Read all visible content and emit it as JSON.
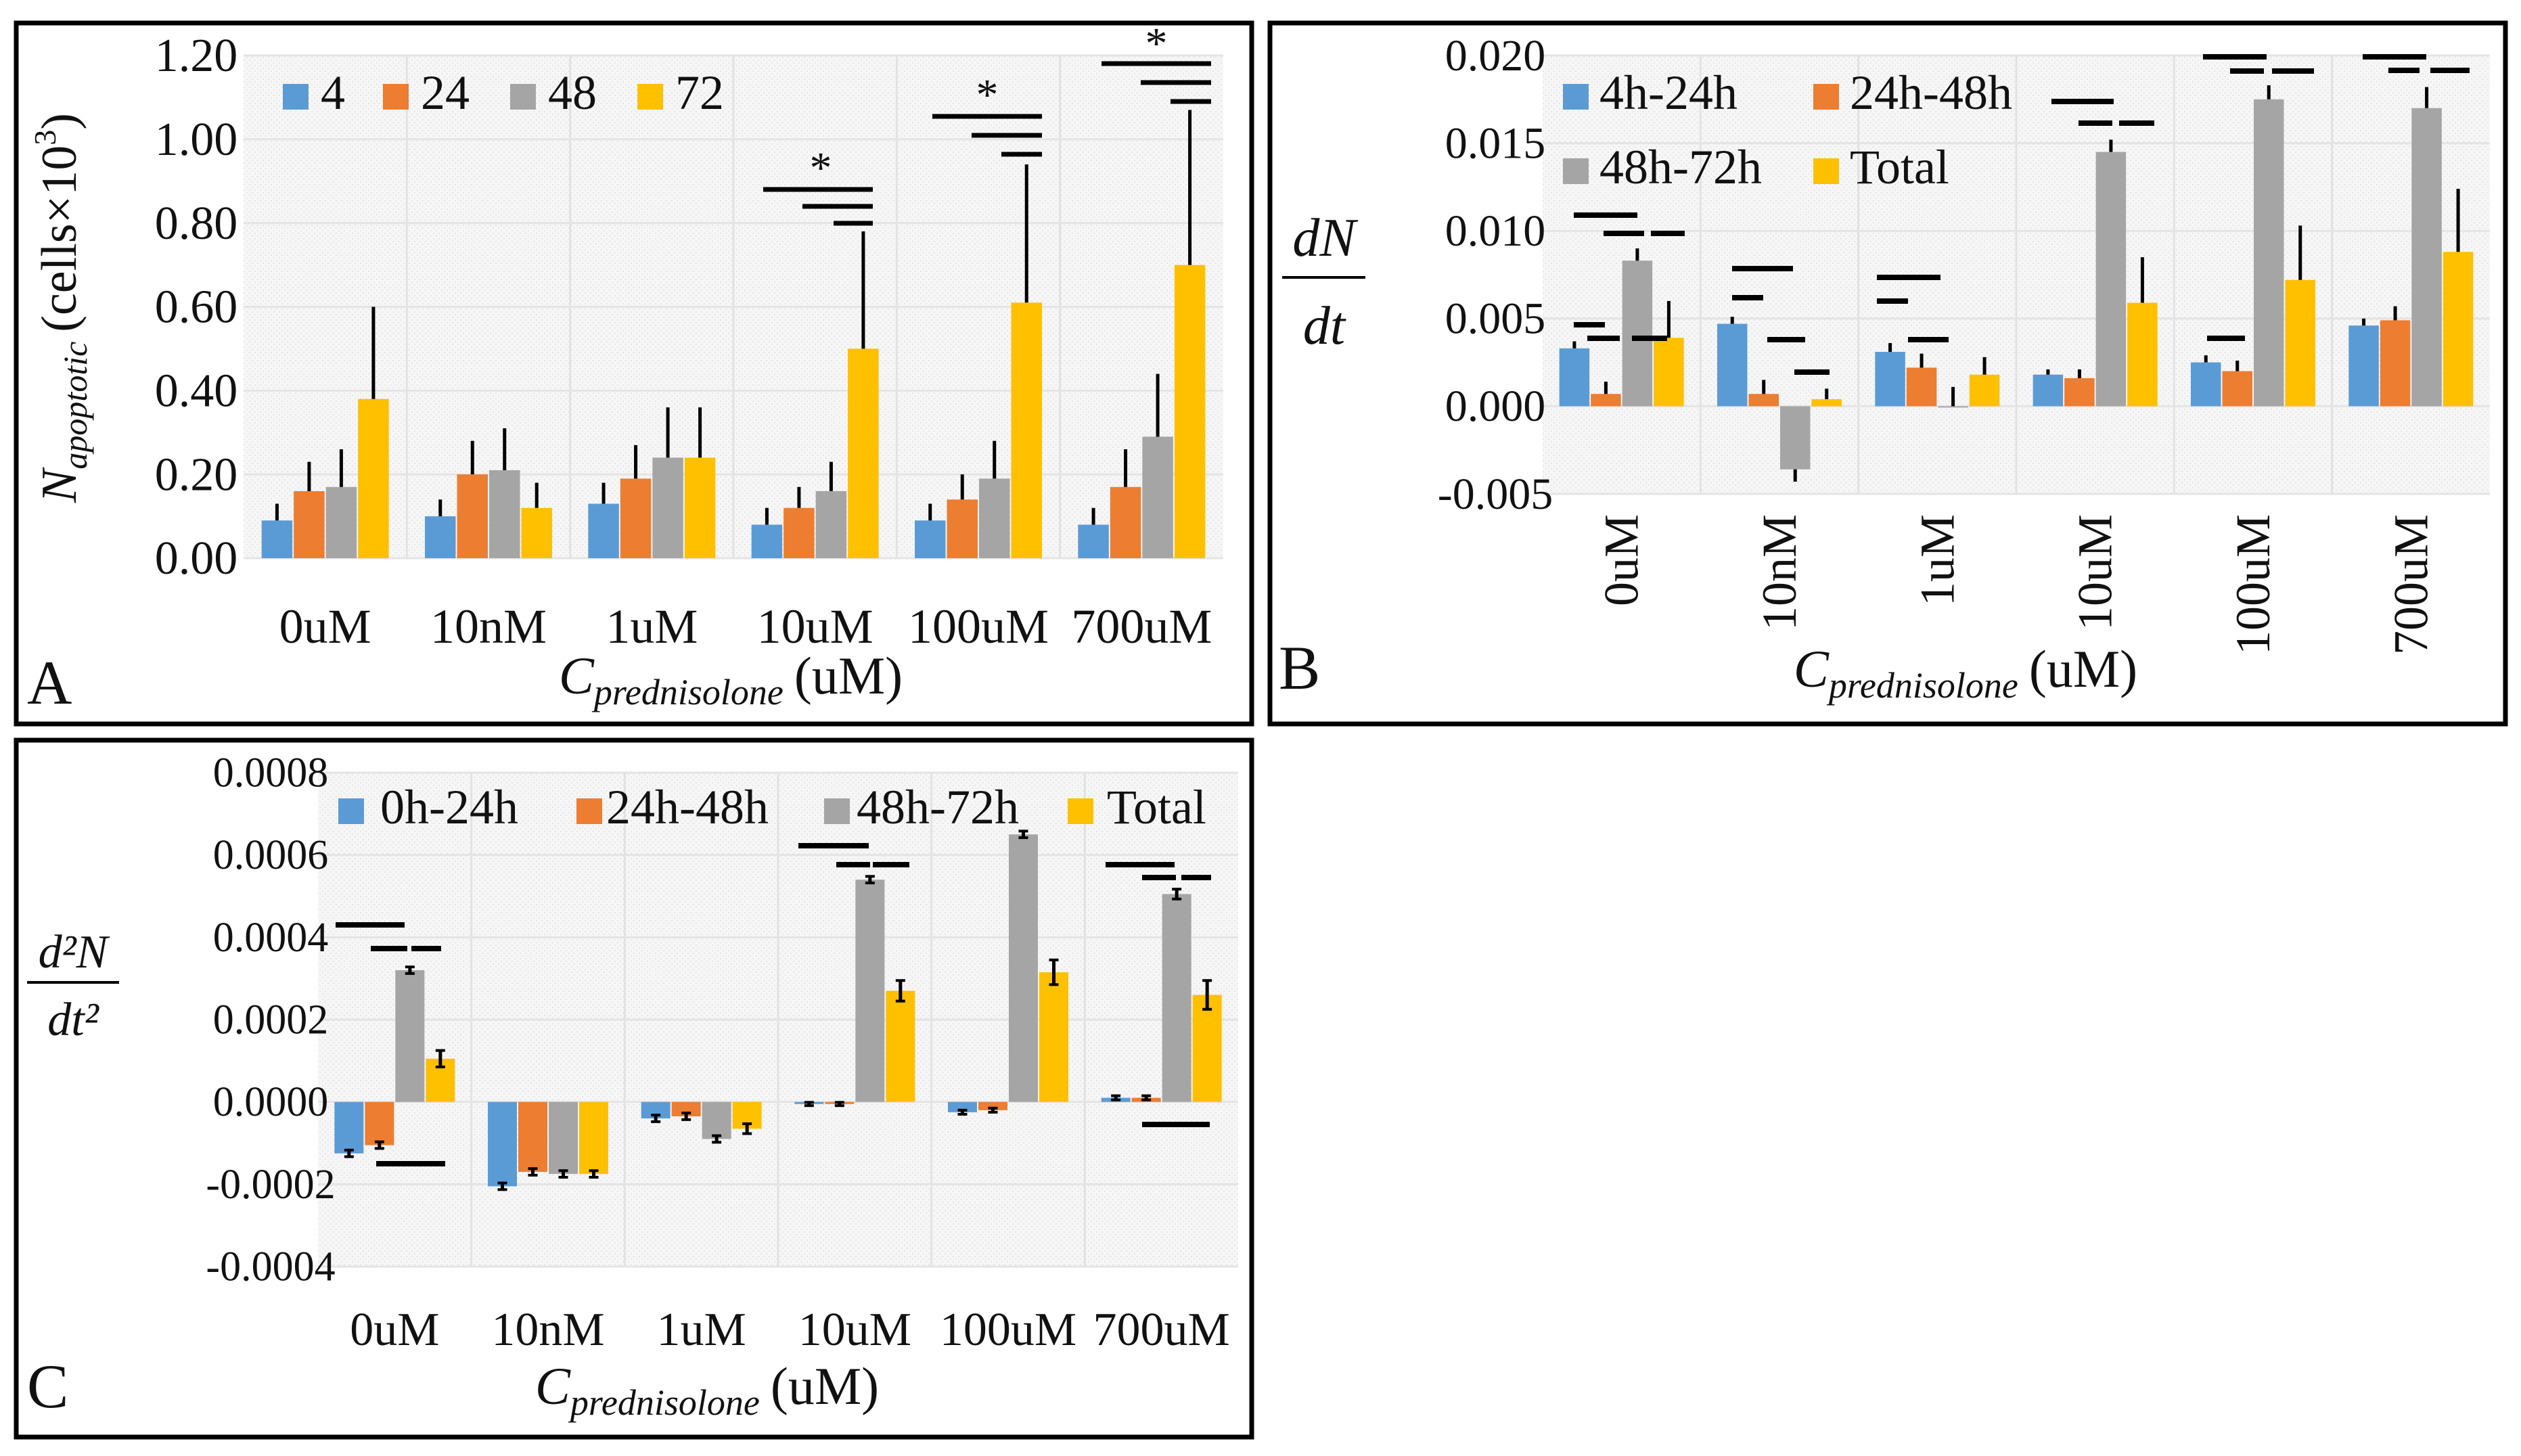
{
  "colors": {
    "s1": "#5B9BD5",
    "s2": "#ED7D31",
    "s3": "#A5A5A5",
    "s4": "#FFC000"
  },
  "chart_data": [
    {
      "id": "A",
      "type": "bar",
      "panel_label": "A",
      "categories": [
        "0uM",
        "10nM",
        "1uM",
        "10uM",
        "100uM",
        "700uM"
      ],
      "series": [
        {
          "name": "4",
          "values": [
            0.09,
            0.1,
            0.13,
            0.08,
            0.09,
            0.08
          ],
          "errors": [
            0.04,
            0.04,
            0.05,
            0.04,
            0.04,
            0.04
          ]
        },
        {
          "name": "24",
          "values": [
            0.16,
            0.2,
            0.19,
            0.12,
            0.14,
            0.17
          ],
          "errors": [
            0.07,
            0.08,
            0.08,
            0.05,
            0.06,
            0.09
          ]
        },
        {
          "name": "48",
          "values": [
            0.17,
            0.21,
            0.24,
            0.16,
            0.19,
            0.29
          ],
          "errors": [
            0.09,
            0.1,
            0.12,
            0.07,
            0.09,
            0.15
          ]
        },
        {
          "name": "72",
          "values": [
            0.38,
            0.12,
            0.24,
            0.5,
            0.61,
            0.7
          ],
          "errors": [
            0.22,
            0.06,
            0.12,
            0.28,
            0.33,
            0.37
          ]
        }
      ],
      "ylim": [
        0,
        1.2
      ],
      "yticks": [
        "0.00",
        "0.20",
        "0.40",
        "0.60",
        "0.80",
        "1.00",
        "1.20"
      ],
      "ylabel_main": "N",
      "ylabel_sub": "apoptotic",
      "ylabel_unit": "(cells×10",
      "ylabel_exp": "3",
      "ylabel_close": ")",
      "xlabel_main": "C",
      "xlabel_sub": "prednisolone",
      "xlabel_unit": "(uM)",
      "significance_marker": "*"
    },
    {
      "id": "B",
      "type": "bar",
      "panel_label": "B",
      "categories": [
        "0uM",
        "10nM",
        "1uM",
        "10uM",
        "100uM",
        "700uM"
      ],
      "series": [
        {
          "name": "4h-24h",
          "values": [
            0.0033,
            0.0047,
            0.0031,
            0.0018,
            0.0025,
            0.0046
          ],
          "errors": [
            0.0004,
            0.0004,
            0.0005,
            0.0003,
            0.0004,
            0.0004
          ]
        },
        {
          "name": "24h-48h",
          "values": [
            0.0007,
            0.0007,
            0.0022,
            0.0016,
            0.002,
            0.0049
          ],
          "errors": [
            0.0007,
            0.0008,
            0.0008,
            0.0005,
            0.0006,
            0.0008
          ]
        },
        {
          "name": "48h-72h",
          "values": [
            0.0083,
            -0.0036,
            0.0,
            0.0145,
            0.0175,
            0.017
          ],
          "errors": [
            0.0007,
            0.0007,
            0.0011,
            0.0007,
            0.0008,
            0.0012
          ]
        },
        {
          "name": "Total",
          "values": [
            0.0039,
            0.0004,
            0.0018,
            0.0059,
            0.0072,
            0.0088
          ],
          "errors": [
            0.0021,
            0.0006,
            0.001,
            0.0026,
            0.0031,
            0.0036
          ]
        }
      ],
      "ylim": [
        -0.005,
        0.02
      ],
      "yticks": [
        "-0.005",
        "0.000",
        "0.005",
        "0.010",
        "0.015",
        "0.020"
      ],
      "ylabel_num": "dN",
      "ylabel_den": "dt",
      "xlabel_main": "C",
      "xlabel_sub": "prednisolone",
      "xlabel_unit": "(uM)"
    },
    {
      "id": "C",
      "type": "bar",
      "panel_label": "C",
      "categories": [
        "0uM",
        "10nM",
        "1uM",
        "10uM",
        "100uM",
        "700uM"
      ],
      "series": [
        {
          "name": "0h-24h",
          "values": [
            -0.000125,
            -0.000205,
            -4e-05,
            -5e-06,
            -2.5e-05,
            1e-05
          ],
          "errors": [
            8e-06,
            8e-06,
            8e-06,
            4e-06,
            5e-06,
            5e-06
          ]
        },
        {
          "name": "24h-48h",
          "values": [
            -0.000105,
            -0.00017,
            -3.5e-05,
            -5e-06,
            -2e-05,
            1e-05
          ],
          "errors": [
            8e-06,
            8e-06,
            8e-06,
            4e-06,
            5e-06,
            5e-06
          ]
        },
        {
          "name": "48h-72h",
          "values": [
            0.00032,
            -0.000175,
            -9e-05,
            0.00054,
            0.00065,
            0.000505
          ],
          "errors": [
            8e-06,
            8e-06,
            8e-06,
            8e-06,
            8e-06,
            1.2e-05
          ]
        },
        {
          "name": "Total",
          "values": [
            0.000105,
            -0.000175,
            -6.5e-05,
            0.00027,
            0.000315,
            0.00026
          ],
          "errors": [
            2e-05,
            8e-06,
            1.2e-05,
            2.5e-05,
            3e-05,
            3.5e-05
          ]
        }
      ],
      "ylim": [
        -0.0004,
        0.0008
      ],
      "yticks": [
        "-0.0004",
        "-0.0002",
        "0.0000",
        "0.0002",
        "0.0004",
        "0.0006",
        "0.0008"
      ],
      "ylabel_num": "d²N",
      "ylabel_den": "dt²",
      "xlabel_main": "C",
      "xlabel_sub": "prednisolone",
      "xlabel_unit": "(uM)"
    }
  ]
}
